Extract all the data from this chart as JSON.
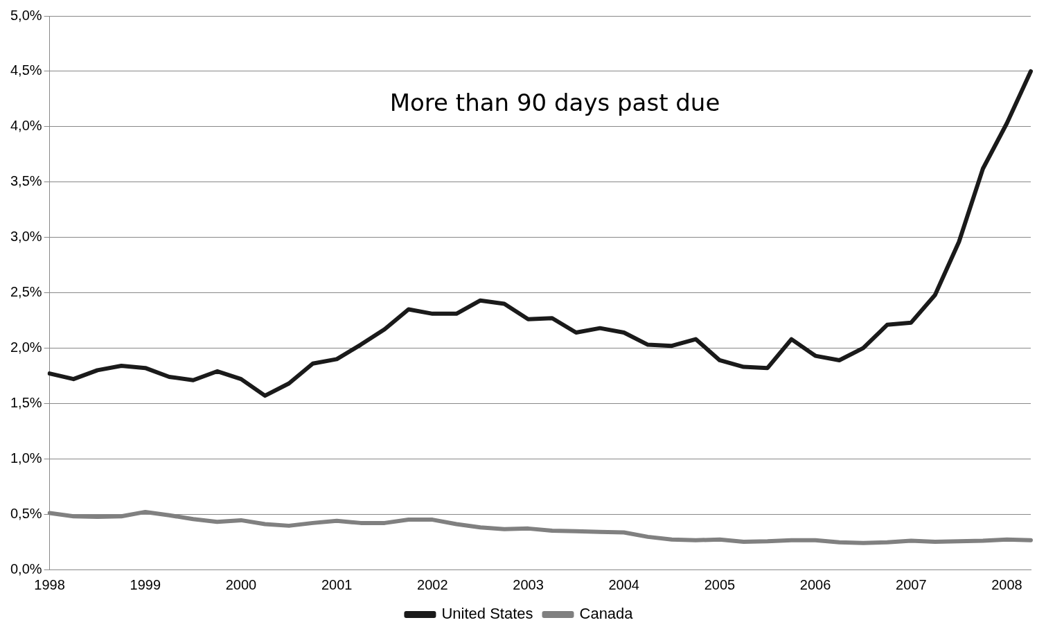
{
  "chart_data": {
    "type": "line",
    "categories": [
      "1998",
      null,
      null,
      null,
      "1999",
      null,
      null,
      null,
      "2000",
      null,
      null,
      null,
      "2001",
      null,
      null,
      null,
      "2002",
      null,
      null,
      null,
      "2003",
      null,
      null,
      null,
      "2004",
      null,
      null,
      null,
      "2005",
      null,
      null,
      null,
      "2006",
      null,
      null,
      null,
      "2007",
      null,
      null,
      null,
      "2008",
      null
    ],
    "series": [
      {
        "name": "United States",
        "color": "#1a1a1a",
        "values": [
          1.77,
          1.72,
          1.8,
          1.84,
          1.82,
          1.74,
          1.71,
          1.79,
          1.72,
          1.57,
          1.68,
          1.86,
          1.9,
          2.03,
          2.17,
          2.35,
          2.31,
          2.31,
          2.43,
          2.4,
          2.26,
          2.27,
          2.14,
          2.18,
          2.14,
          2.03,
          2.02,
          2.08,
          1.89,
          1.83,
          1.82,
          2.08,
          1.93,
          1.89,
          2.0,
          2.21,
          2.23,
          2.48,
          2.96,
          3.62,
          4.03,
          4.5
        ]
      },
      {
        "name": "Canada",
        "color": "#808080",
        "values": [
          0.51,
          0.48,
          0.475,
          0.48,
          0.52,
          0.49,
          0.455,
          0.43,
          0.445,
          0.41,
          0.395,
          0.42,
          0.44,
          0.42,
          0.42,
          0.45,
          0.45,
          0.41,
          0.38,
          0.365,
          0.37,
          0.35,
          0.345,
          0.34,
          0.335,
          0.295,
          0.27,
          0.265,
          0.27,
          0.25,
          0.255,
          0.265,
          0.265,
          0.245,
          0.24,
          0.245,
          0.26,
          0.25,
          0.255,
          0.26,
          0.27,
          0.265
        ]
      }
    ],
    "ylim": [
      0,
      5
    ],
    "yticks": [
      {
        "value": 0,
        "label": "0,0%"
      },
      {
        "value": 0.5,
        "label": "0,5%"
      },
      {
        "value": 1,
        "label": "1,0%"
      },
      {
        "value": 1.5,
        "label": "1,5%"
      },
      {
        "value": 2,
        "label": "2,0%"
      },
      {
        "value": 2.5,
        "label": "2,5%"
      },
      {
        "value": 3,
        "label": "3,0%"
      },
      {
        "value": 3.5,
        "label": "3,5%"
      },
      {
        "value": 4,
        "label": "4,0%"
      },
      {
        "value": 4.5,
        "label": "4,5%"
      },
      {
        "value": 5,
        "label": "5,0%"
      }
    ],
    "annotations": [
      "More than 90 days past due"
    ],
    "grid": "y",
    "legend": "bottom",
    "marker": "none",
    "line_style": "solid"
  }
}
